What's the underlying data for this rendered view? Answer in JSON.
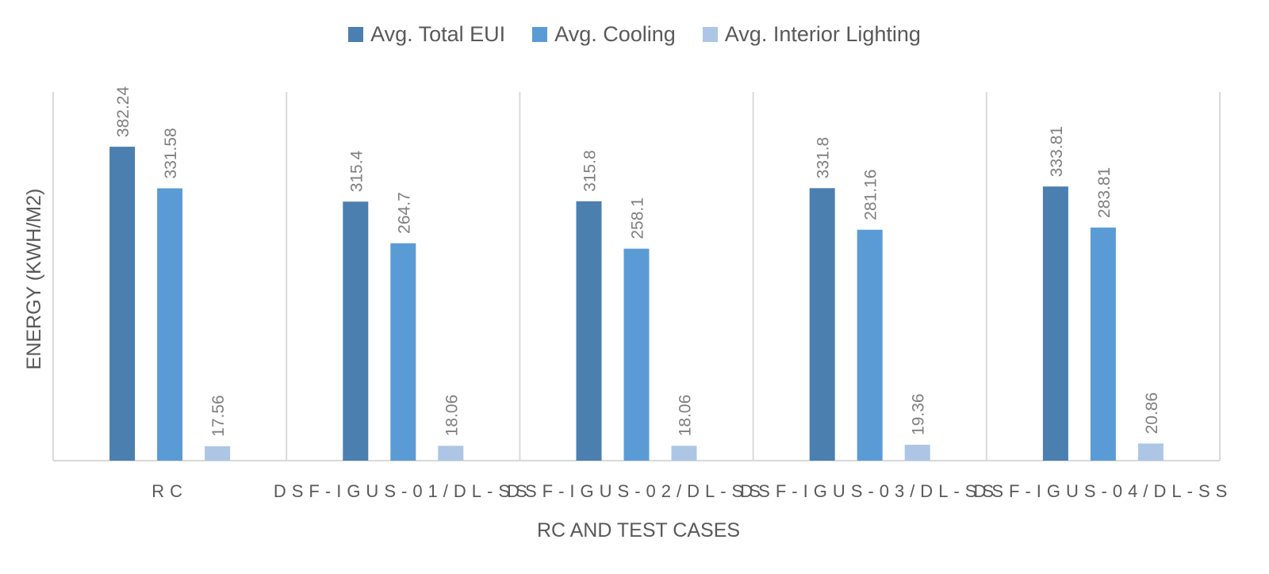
{
  "chart_data": {
    "type": "bar",
    "categories": [
      "RC",
      "DSF-IGUS-01/DL-SS",
      "DSF-IGUS-02/DL-SS",
      "DSF-IGUS-03/DL-SS",
      "DSF-IGUS-04/DL-SS"
    ],
    "series": [
      {
        "name": "Avg. Total EUI",
        "values": [
          382.24,
          315.4,
          315.8,
          331.8,
          333.81
        ],
        "color": "#4a7fb0"
      },
      {
        "name": "Avg. Cooling",
        "values": [
          331.58,
          264.7,
          258.1,
          281.16,
          283.81
        ],
        "color": "#5b9bd5"
      },
      {
        "name": "Avg. Interior Lighting",
        "values": [
          17.56,
          18.06,
          18.06,
          19.36,
          20.86
        ],
        "color": "#adc6e5"
      }
    ],
    "data_labels": [
      [
        "382.24",
        "315.4",
        "315.8",
        "331.8",
        "333.81"
      ],
      [
        "331.58",
        "264.7",
        "258.1",
        "281.16",
        "283.81"
      ],
      [
        "17.56",
        "18.06",
        "18.06",
        "19.36",
        "20.86"
      ]
    ],
    "xlabel": "RC AND TEST CASES",
    "ylabel": "ENERGY (KWH/M2)",
    "ylim": [
      0,
      450
    ],
    "legend_position": "top-center",
    "grid": false
  }
}
